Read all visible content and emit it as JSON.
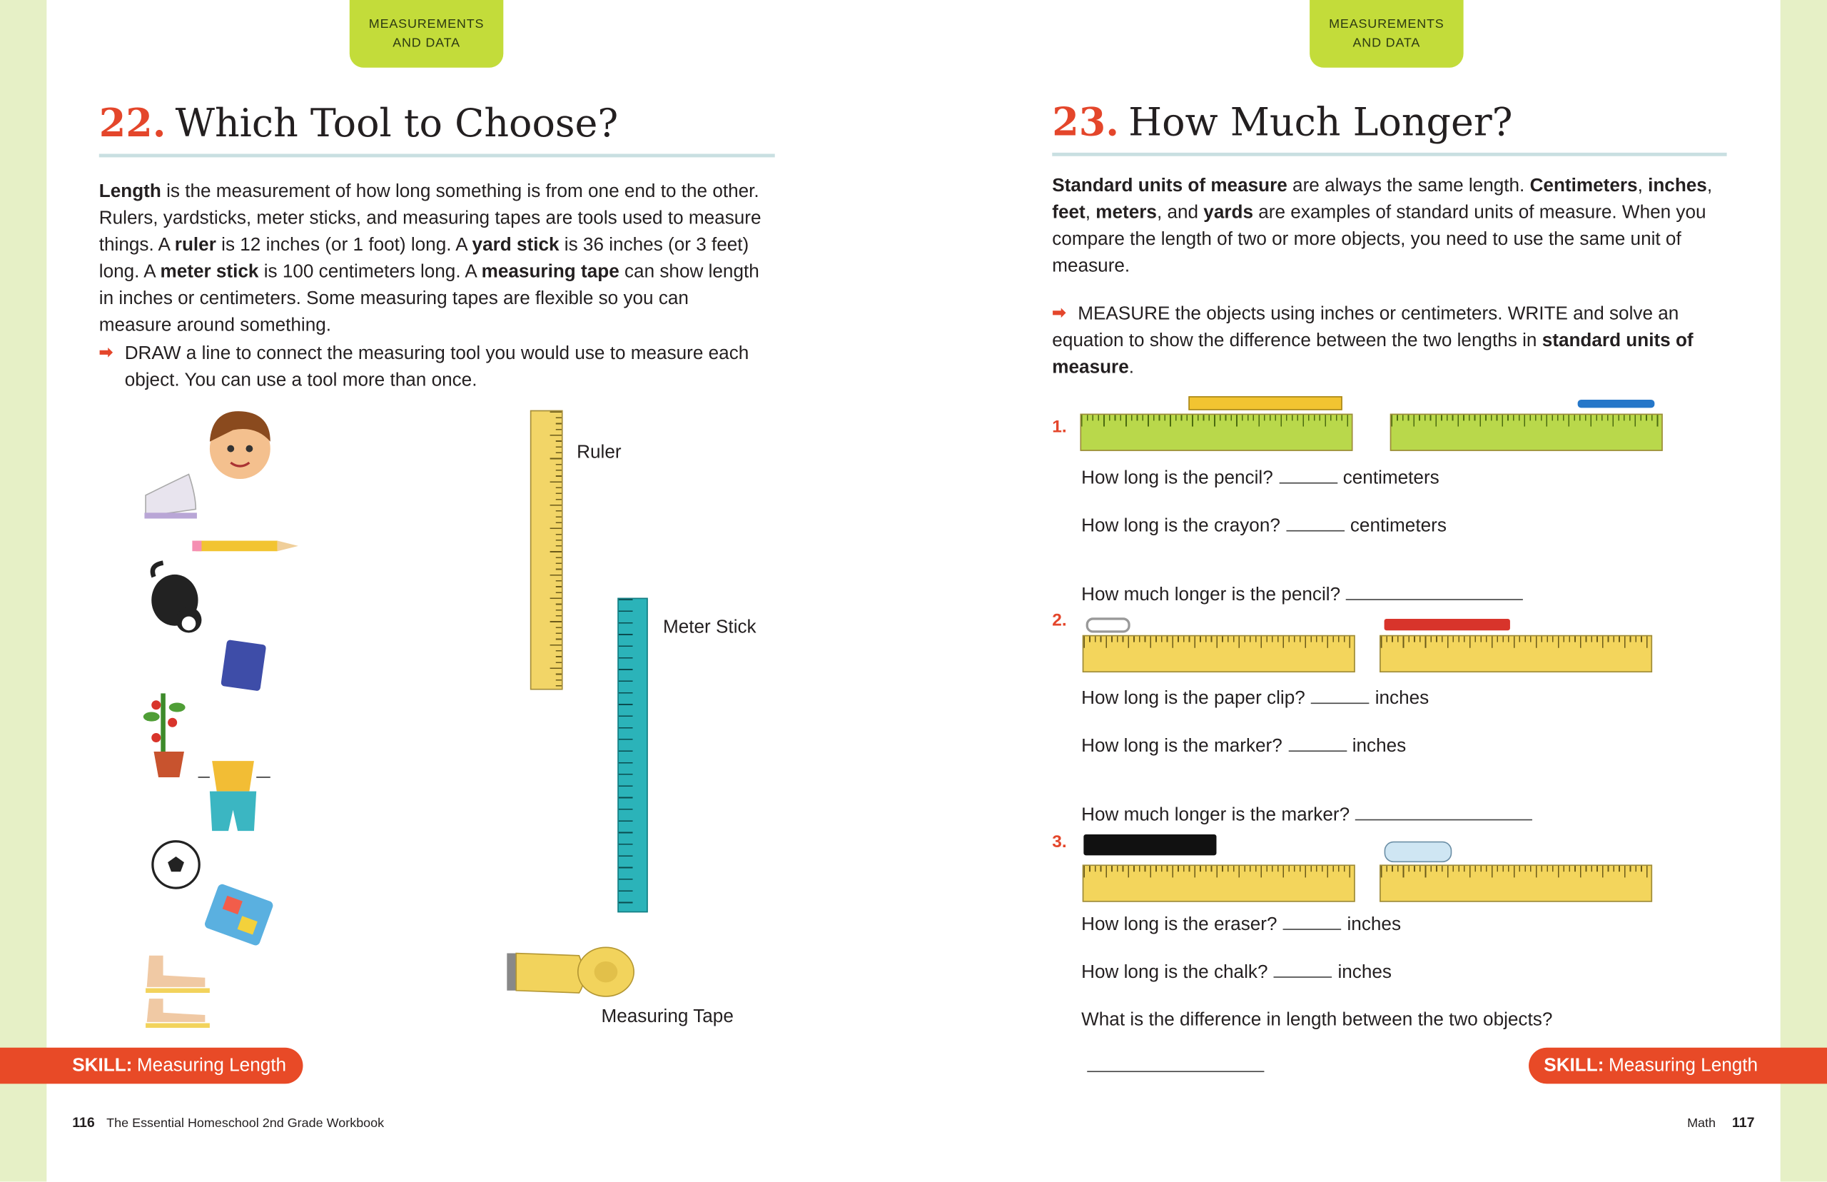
{
  "left_page": {
    "tab": [
      "MEASUREMENTS",
      "AND DATA"
    ],
    "number": "22.",
    "title": "Which Tool to Choose?",
    "intro": [
      {
        "text": "Length",
        "bold": true
      },
      {
        "text": " is the measurement of how long something is from one end to the other. Rulers, yardsticks, meter sticks, and measuring tapes are tools used to measure things. A ",
        "bold": false
      },
      {
        "text": "ruler",
        "bold": true
      },
      {
        "text": " is 12 inches (or 1 foot) long. A ",
        "bold": false
      },
      {
        "text": "yard stick",
        "bold": true
      },
      {
        "text": " is 36 inches (or 3 feet) long. A ",
        "bold": false
      },
      {
        "text": "meter stick",
        "bold": true
      },
      {
        "text": " is 100 centimeters long. A ",
        "bold": false
      },
      {
        "text": "measuring tape",
        "bold": true
      },
      {
        "text": " can show length in inches or centimeters. Some measuring tapes are flexible so you can measure around something.",
        "bold": false
      }
    ],
    "instruction": [
      {
        "text": "DRAW a line to connect the measuring tool you would use to measure each object. You can use a tool more than once.",
        "bold": false
      }
    ],
    "tools": [
      "Ruler",
      "Meter Stick",
      "Measuring Tape"
    ],
    "skill": {
      "label": "SKILL:",
      "text": "Measuring Length"
    },
    "footer": {
      "page": "116",
      "book": "The Essential Homeschool 2nd Grade Workbook"
    }
  },
  "right_page": {
    "tab": [
      "MEASUREMENTS",
      "AND DATA"
    ],
    "number": "23.",
    "title": "How Much Longer?",
    "intro": [
      {
        "text": "Standard units of measure",
        "bold": true
      },
      {
        "text": " are always the same length. ",
        "bold": false
      },
      {
        "text": "Centimeters",
        "bold": true
      },
      {
        "text": ", ",
        "bold": false
      },
      {
        "text": "inches",
        "bold": true
      },
      {
        "text": ", ",
        "bold": false
      },
      {
        "text": "feet",
        "bold": true
      },
      {
        "text": ", ",
        "bold": false
      },
      {
        "text": "meters",
        "bold": true
      },
      {
        "text": ", and ",
        "bold": false
      },
      {
        "text": "yards",
        "bold": true
      },
      {
        "text": " are examples of standard units of measure. When you compare the length of two or more objects, you need to use the same unit of measure.",
        "bold": false
      }
    ],
    "instruction": [
      {
        "text": "MEASURE the objects using inches or centimeters. WRITE and solve an equation to show the difference between the two lengths in ",
        "bold": false
      },
      {
        "text": "standard units of measure",
        "bold": true
      },
      {
        "text": ".",
        "bold": false
      }
    ],
    "problems": [
      {
        "number": "1.",
        "questions": [
          {
            "text": "How long is the pencil?",
            "unit": "centimeters"
          },
          {
            "text": "How long is the crayon?",
            "unit": "centimeters"
          },
          {
            "text": "How much longer is the pencil?"
          }
        ]
      },
      {
        "number": "2.",
        "questions": [
          {
            "text": "How long is the paper clip?",
            "unit": "inches"
          },
          {
            "text": "How long is the marker?",
            "unit": "inches"
          },
          {
            "text": "How much longer is the marker?"
          }
        ]
      },
      {
        "number": "3.",
        "questions": [
          {
            "text": "How long is the eraser?",
            "unit": "inches"
          },
          {
            "text": "How long is the chalk?",
            "unit": "inches"
          },
          {
            "text": "What is the difference in length between the two objects?"
          }
        ]
      }
    ],
    "skill": {
      "label": "SKILL:",
      "text": "Measuring Length"
    },
    "footer": {
      "section": "Math",
      "page": "117"
    }
  }
}
